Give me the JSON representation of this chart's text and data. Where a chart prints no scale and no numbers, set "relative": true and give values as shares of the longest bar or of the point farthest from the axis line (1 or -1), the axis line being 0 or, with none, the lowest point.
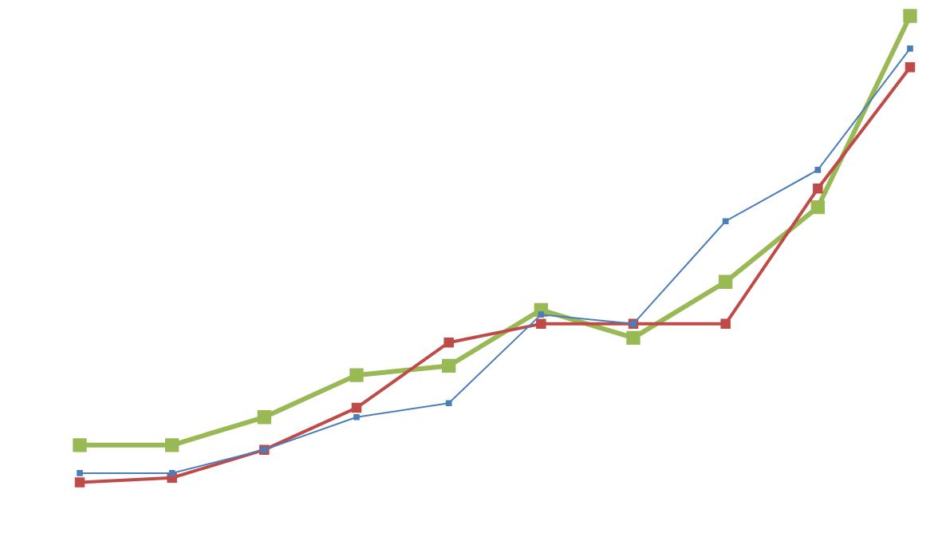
{
  "chart_data": {
    "type": "line",
    "relative": true,
    "categories": [
      null,
      null,
      null,
      null,
      null,
      null,
      null,
      null,
      null,
      null
    ],
    "series": [
      {
        "color": "#4a7ebb",
        "values": [
          0.02,
          0.02,
          0.07,
          0.14,
          0.17,
          0.36,
          0.34,
          0.56,
          0.67,
          0.93
        ]
      },
      {
        "color": "#be4b48",
        "values": [
          0,
          0.01,
          0.07,
          0.16,
          0.3,
          0.34,
          0.34,
          0.34,
          0.63,
          0.89
        ]
      },
      {
        "color": "#98b954",
        "values": [
          0.08,
          0.08,
          0.14,
          0.23,
          0.25,
          0.37,
          0.31,
          0.43,
          0.59,
          1
        ]
      }
    ],
    "marker": "square",
    "grid": false,
    "legend": false
  }
}
